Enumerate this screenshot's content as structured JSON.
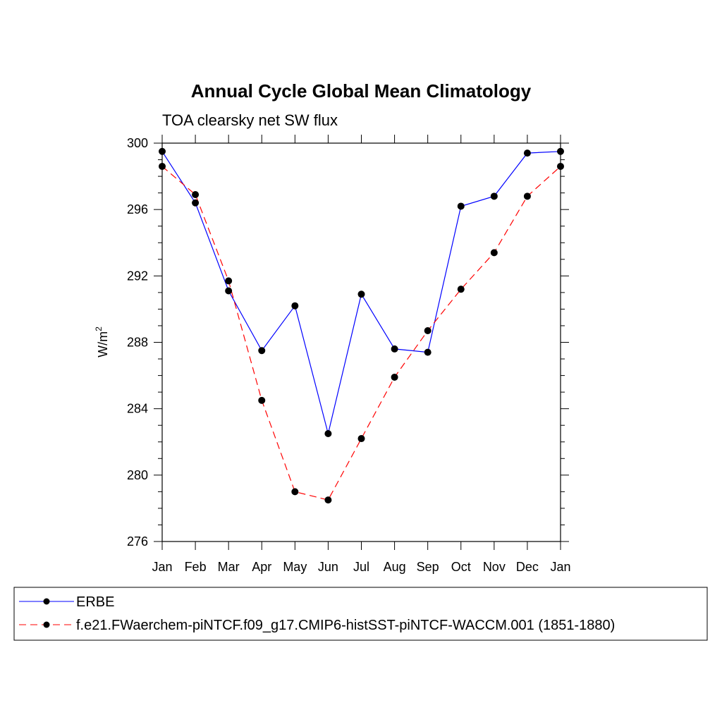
{
  "chart_data": {
    "type": "line",
    "title": "Annual Cycle Global Mean Climatology",
    "subtitle": "TOA clearsky net SW flux",
    "ylabel": "W/m",
    "ylabel_sup": "2",
    "xlabel": "",
    "ylim": [
      276,
      300
    ],
    "yticks": [
      276,
      280,
      284,
      288,
      292,
      296,
      300
    ],
    "categories": [
      "Jan",
      "Feb",
      "Mar",
      "Apr",
      "May",
      "Jun",
      "Jul",
      "Aug",
      "Sep",
      "Oct",
      "Nov",
      "Dec",
      "Jan"
    ],
    "series": [
      {
        "name": "ERBE",
        "color": "#0000ff",
        "dash": "solid",
        "values": [
          299.5,
          296.4,
          291.1,
          287.5,
          290.2,
          282.5,
          290.9,
          287.6,
          287.4,
          296.2,
          296.8,
          299.4,
          299.5
        ]
      },
      {
        "name": "f.e21.FWaerchem-piNTCF.f09_g17.CMIP6-histSST-piNTCF-WACCM.001 (1851-1880)",
        "color": "#ff0000",
        "dash": "dashed",
        "values": [
          298.6,
          296.9,
          291.7,
          284.5,
          279.0,
          278.5,
          282.2,
          285.9,
          288.7,
          291.2,
          293.4,
          296.8,
          298.6
        ]
      }
    ]
  }
}
